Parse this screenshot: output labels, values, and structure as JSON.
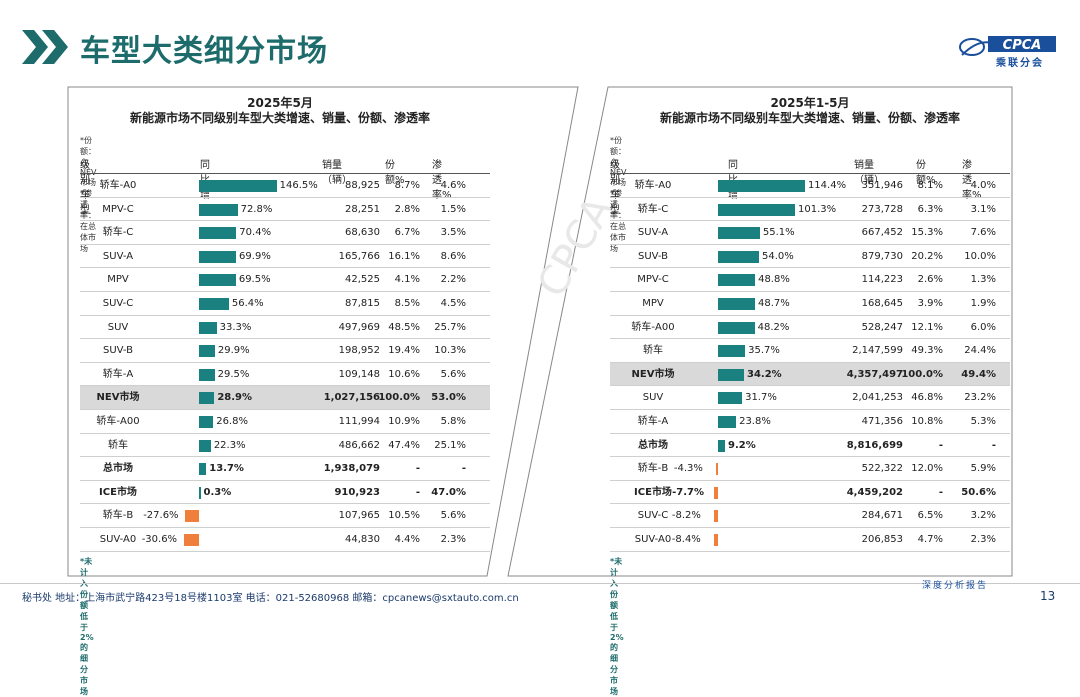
{
  "header": {
    "title": "车型大类细分市场"
  },
  "logo": {
    "text": "CPCA",
    "subtitle": "乘联分会"
  },
  "columns": {
    "name": "级别车型",
    "growth": "同比增速%",
    "sales": "销量（辆）",
    "share": "份额%",
    "pen": "渗透率%"
  },
  "colors": {
    "teal": "#1a8080",
    "orange": "#f07f3c",
    "title": "#1d6b6b"
  },
  "panels": [
    {
      "title1": "2025年5月",
      "title2": "新能源市场不同级别车型大类增速、销量、份额、渗透率",
      "note": "*份额：占NEV市场   *渗透率：在总体市场",
      "footnote": "*未计入份额低于2%的细分市场",
      "rows": [
        {
          "name": "轿车-A0",
          "growth": 146.5,
          "growth_label": "146.5%",
          "sales": "88,925",
          "share": "8.7%",
          "pen": "4.6%"
        },
        {
          "name": "MPV-C",
          "growth": 72.8,
          "growth_label": "72.8%",
          "sales": "28,251",
          "share": "2.8%",
          "pen": "1.5%"
        },
        {
          "name": "轿车-C",
          "growth": 70.4,
          "growth_label": "70.4%",
          "sales": "68,630",
          "share": "6.7%",
          "pen": "3.5%"
        },
        {
          "name": "SUV-A",
          "growth": 69.9,
          "growth_label": "69.9%",
          "sales": "165,766",
          "share": "16.1%",
          "pen": "8.6%"
        },
        {
          "name": "MPV",
          "growth": 69.5,
          "growth_label": "69.5%",
          "sales": "42,525",
          "share": "4.1%",
          "pen": "2.2%"
        },
        {
          "name": "SUV-C",
          "growth": 56.4,
          "growth_label": "56.4%",
          "sales": "87,815",
          "share": "8.5%",
          "pen": "4.5%"
        },
        {
          "name": "SUV",
          "growth": 33.3,
          "growth_label": "33.3%",
          "sales": "497,969",
          "share": "48.5%",
          "pen": "25.7%"
        },
        {
          "name": "SUV-B",
          "growth": 29.9,
          "growth_label": "29.9%",
          "sales": "198,952",
          "share": "19.4%",
          "pen": "10.3%"
        },
        {
          "name": "轿车-A",
          "growth": 29.5,
          "growth_label": "29.5%",
          "sales": "109,148",
          "share": "10.6%",
          "pen": "5.6%"
        },
        {
          "name": "NEV市场",
          "growth": 28.9,
          "growth_label": "28.9%",
          "sales": "1,027,156",
          "share": "100.0%",
          "pen": "53.0%",
          "highlight": true,
          "bold": true
        },
        {
          "name": "轿车-A00",
          "growth": 26.8,
          "growth_label": "26.8%",
          "sales": "111,994",
          "share": "10.9%",
          "pen": "5.8%"
        },
        {
          "name": "轿车",
          "growth": 22.3,
          "growth_label": "22.3%",
          "sales": "486,662",
          "share": "47.4%",
          "pen": "25.1%"
        },
        {
          "name": "总市场",
          "growth": 13.7,
          "growth_label": "13.7%",
          "sales": "1,938,079",
          "share": "-",
          "pen": "-",
          "bold": true
        },
        {
          "name": "ICE市场",
          "growth": 0.3,
          "growth_label": "0.3%",
          "sales": "910,923",
          "share": "-",
          "pen": "47.0%",
          "bold": true
        },
        {
          "name": "轿车-B",
          "growth": -27.6,
          "growth_label": "-27.6%",
          "sales": "107,965",
          "share": "10.5%",
          "pen": "5.6%"
        },
        {
          "name": "SUV-A0",
          "growth": -30.6,
          "growth_label": "-30.6%",
          "sales": "44,830",
          "share": "4.4%",
          "pen": "2.3%"
        }
      ]
    },
    {
      "title1": "2025年1-5月",
      "title2": "新能源市场不同级别车型大类增速、销量、份额、渗透率",
      "note": "*份额：占NEV市场   *渗透率：在总体市场",
      "footnote": "*未计入份额低于2%的细分市场",
      "rows": [
        {
          "name": "轿车-A0",
          "growth": 114.4,
          "growth_label": "114.4%",
          "sales": "351,946",
          "share": "8.1%",
          "pen": "4.0%"
        },
        {
          "name": "轿车-C",
          "growth": 101.3,
          "growth_label": "101.3%",
          "sales": "273,728",
          "share": "6.3%",
          "pen": "3.1%"
        },
        {
          "name": "SUV-A",
          "growth": 55.1,
          "growth_label": "55.1%",
          "sales": "667,452",
          "share": "15.3%",
          "pen": "7.6%"
        },
        {
          "name": "SUV-B",
          "growth": 54.0,
          "growth_label": "54.0%",
          "sales": "879,730",
          "share": "20.2%",
          "pen": "10.0%"
        },
        {
          "name": "MPV-C",
          "growth": 48.8,
          "growth_label": "48.8%",
          "sales": "114,223",
          "share": "2.6%",
          "pen": "1.3%"
        },
        {
          "name": "MPV",
          "growth": 48.7,
          "growth_label": "48.7%",
          "sales": "168,645",
          "share": "3.9%",
          "pen": "1.9%"
        },
        {
          "name": "轿车-A00",
          "growth": 48.2,
          "growth_label": "48.2%",
          "sales": "528,247",
          "share": "12.1%",
          "pen": "6.0%"
        },
        {
          "name": "轿车",
          "growth": 35.7,
          "growth_label": "35.7%",
          "sales": "2,147,599",
          "share": "49.3%",
          "pen": "24.4%"
        },
        {
          "name": "NEV市场",
          "growth": 34.2,
          "growth_label": "34.2%",
          "sales": "4,357,497",
          "share": "100.0%",
          "pen": "49.4%",
          "highlight": true,
          "bold": true
        },
        {
          "name": "SUV",
          "growth": 31.7,
          "growth_label": "31.7%",
          "sales": "2,041,253",
          "share": "46.8%",
          "pen": "23.2%"
        },
        {
          "name": "轿车-A",
          "growth": 23.8,
          "growth_label": "23.8%",
          "sales": "471,356",
          "share": "10.8%",
          "pen": "5.3%"
        },
        {
          "name": "总市场",
          "growth": 9.2,
          "growth_label": "9.2%",
          "sales": "8,816,699",
          "share": "-",
          "pen": "-",
          "bold": true
        },
        {
          "name": "轿车-B",
          "growth": -4.3,
          "growth_label": "-4.3%",
          "sales": "522,322",
          "share": "12.0%",
          "pen": "5.9%"
        },
        {
          "name": "ICE市场",
          "growth": -7.7,
          "growth_label": "-7.7%",
          "sales": "4,459,202",
          "share": "-",
          "pen": "50.6%",
          "bold": true
        },
        {
          "name": "SUV-C",
          "growth": -8.2,
          "growth_label": "-8.2%",
          "sales": "284,671",
          "share": "6.5%",
          "pen": "3.2%"
        },
        {
          "name": "SUV-A0",
          "growth": -8.4,
          "growth_label": "-8.4%",
          "sales": "206,853",
          "share": "4.7%",
          "pen": "2.3%"
        }
      ]
    }
  ],
  "footer": {
    "contact": "秘书处   地址：上海市武宁路423号18号楼1103室  电话：021-52680968   邮箱：cpcanews@sxtauto.com.cn",
    "right_label": "深度分析报告",
    "page": "13"
  }
}
